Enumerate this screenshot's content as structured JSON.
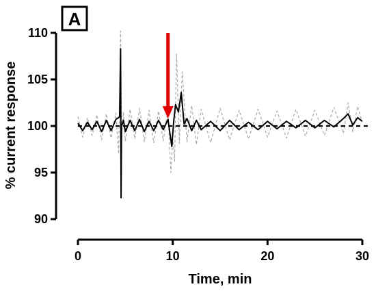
{
  "chart_data": {
    "type": "line",
    "panel_label": "A",
    "xlabel": "Time, min",
    "ylabel": "% current response",
    "xlim": [
      0,
      30
    ],
    "ylim": [
      90,
      110
    ],
    "xticks": [
      0,
      10,
      20,
      30
    ],
    "yticks": [
      90,
      95,
      100,
      105,
      110
    ],
    "reference_line": {
      "y": 100,
      "style": "dashed"
    },
    "annotation": {
      "type": "arrow",
      "color": "#e00000",
      "x": 9.5,
      "y_from": 110,
      "y_to": 100.8
    },
    "series": [
      {
        "style": "dashed",
        "color": "#a8a8a8",
        "x": [
          0.0,
          0.5,
          1.0,
          1.5,
          2.0,
          2.5,
          3.0,
          3.5,
          4.0,
          4.3,
          4.5,
          4.6,
          4.8,
          5.0,
          5.5,
          6.0,
          6.5,
          7.0,
          7.5,
          8.0,
          8.5,
          9.0,
          9.5,
          9.8,
          10.0,
          10.2,
          10.4,
          10.7,
          11.0,
          11.5,
          12.0,
          12.5,
          13.0,
          14.0,
          15.0,
          16.0,
          17.0,
          18.0,
          19.0,
          20.0,
          21.0,
          22.0,
          23.0,
          24.0,
          25.0,
          26.0,
          27.0,
          28.0,
          28.5,
          29.0,
          29.5,
          30.0
        ],
        "values": [
          101.0,
          98.8,
          100.9,
          99.0,
          101.2,
          98.5,
          101.3,
          98.7,
          101.4,
          97.0,
          110.2,
          99.0,
          101.5,
          98.4,
          101.8,
          98.6,
          101.9,
          98.3,
          101.7,
          98.2,
          101.6,
          98.4,
          101.9,
          95.0,
          98.6,
          96.2,
          107.8,
          98.1,
          105.8,
          98.3,
          102.2,
          98.0,
          101.8,
          98.2,
          101.9,
          98.5,
          101.7,
          98.6,
          101.8,
          98.8,
          101.6,
          98.7,
          101.8,
          98.9,
          101.7,
          99.0,
          102.0,
          99.2,
          102.5,
          99.4,
          102.1,
          100.4
        ]
      },
      {
        "style": "solid",
        "color": "#000000",
        "x": [
          0.0,
          0.5,
          1.0,
          1.5,
          2.0,
          2.5,
          3.0,
          3.5,
          4.0,
          4.4,
          4.5,
          4.55,
          4.6,
          4.8,
          5.0,
          5.5,
          6.0,
          6.5,
          7.0,
          7.5,
          8.0,
          8.5,
          9.0,
          9.5,
          9.9,
          10.1,
          10.3,
          10.6,
          10.9,
          11.2,
          11.5,
          12.0,
          12.5,
          13.0,
          14.0,
          15.0,
          16.0,
          17.0,
          18.0,
          19.0,
          20.0,
          21.0,
          22.0,
          23.0,
          24.0,
          25.0,
          26.0,
          27.0,
          28.0,
          28.5,
          29.0,
          29.5,
          30.0
        ],
        "values": [
          100.3,
          99.5,
          100.4,
          99.6,
          100.5,
          99.4,
          100.6,
          99.5,
          100.7,
          101.0,
          108.3,
          92.3,
          100.0,
          100.6,
          99.4,
          100.6,
          99.5,
          100.7,
          99.4,
          100.5,
          99.5,
          100.6,
          99.6,
          100.7,
          97.8,
          100.5,
          102.3,
          101.5,
          103.6,
          100.2,
          100.8,
          99.5,
          100.6,
          99.6,
          100.5,
          99.5,
          100.6,
          99.6,
          100.4,
          99.6,
          100.5,
          99.7,
          100.5,
          99.8,
          100.6,
          99.8,
          100.6,
          99.9,
          100.8,
          101.3,
          100.1,
          100.9,
          100.5
        ]
      }
    ]
  }
}
